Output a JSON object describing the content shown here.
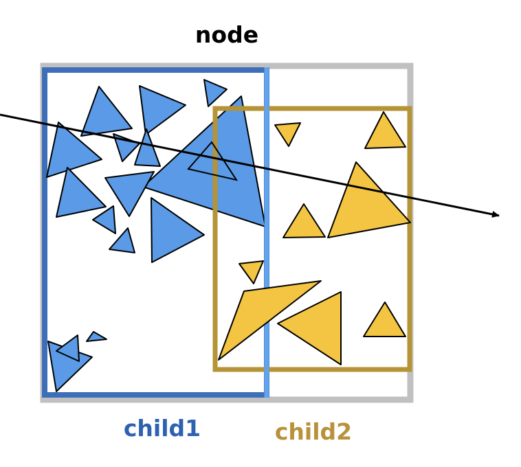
{
  "labels": {
    "node": "node",
    "child1": "child1",
    "child2": "child2"
  },
  "colors": {
    "node_box": "#c0c0c0",
    "child1_box": "#3d6fb8",
    "child1_box_light": "#62a3ee",
    "child2_box": "#b59337",
    "blue_triangle_fill": "#5a9ae6",
    "yellow_triangle_fill": "#f4c542",
    "child1_label": "#2e62b0",
    "child2_label": "#b8923a",
    "outline": "#000000"
  },
  "diagram": {
    "ray": true,
    "blue_triangle_count": 19,
    "yellow_triangle_count": 9
  }
}
